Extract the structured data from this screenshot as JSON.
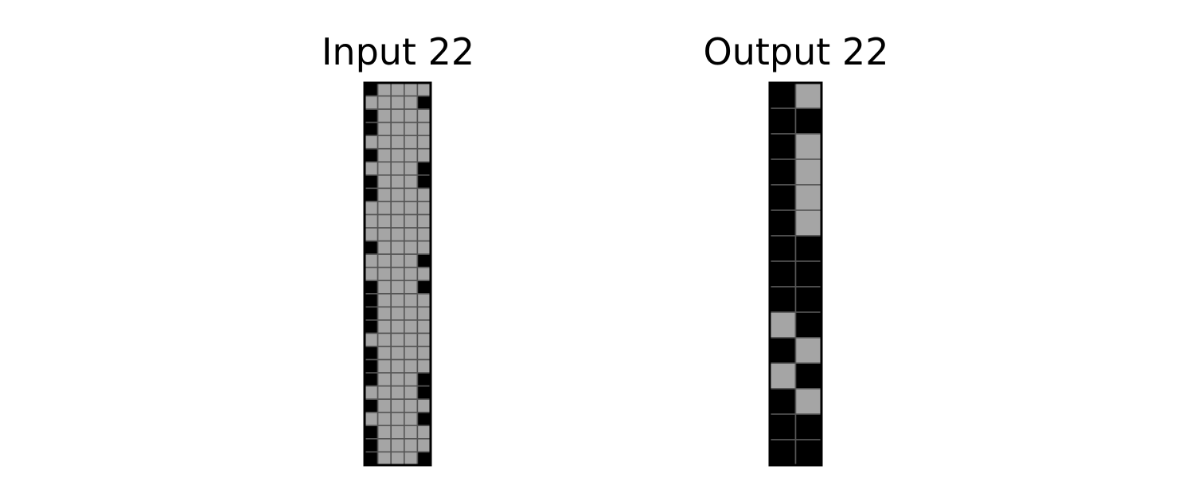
{
  "input": {
    "title": "Input 22",
    "rows": [
      [
        0,
        5,
        5,
        5,
        5
      ],
      [
        5,
        5,
        5,
        5,
        0
      ],
      [
        0,
        5,
        5,
        5,
        5
      ],
      [
        0,
        5,
        5,
        5,
        5
      ],
      [
        5,
        5,
        5,
        5,
        5
      ],
      [
        0,
        5,
        5,
        5,
        5
      ],
      [
        5,
        5,
        5,
        5,
        0
      ],
      [
        0,
        5,
        5,
        5,
        0
      ],
      [
        0,
        5,
        5,
        5,
        5
      ],
      [
        5,
        5,
        5,
        5,
        5
      ],
      [
        5,
        5,
        5,
        5,
        5
      ],
      [
        5,
        5,
        5,
        5,
        5
      ],
      [
        0,
        5,
        5,
        5,
        5
      ],
      [
        5,
        5,
        5,
        5,
        0
      ],
      [
        5,
        5,
        5,
        5,
        5
      ],
      [
        0,
        5,
        5,
        5,
        0
      ],
      [
        0,
        5,
        5,
        5,
        5
      ],
      [
        0,
        5,
        5,
        5,
        5
      ],
      [
        0,
        5,
        5,
        5,
        5
      ],
      [
        5,
        5,
        5,
        5,
        5
      ],
      [
        0,
        5,
        5,
        5,
        5
      ],
      [
        0,
        5,
        5,
        5,
        5
      ],
      [
        0,
        5,
        5,
        5,
        0
      ],
      [
        5,
        5,
        5,
        5,
        0
      ],
      [
        0,
        5,
        5,
        5,
        5
      ],
      [
        5,
        5,
        5,
        5,
        0
      ],
      [
        0,
        5,
        5,
        5,
        5
      ],
      [
        0,
        5,
        5,
        5,
        5
      ],
      [
        0,
        5,
        5,
        5,
        0
      ]
    ]
  },
  "output": {
    "title": "Output 22",
    "rows": [
      [
        0,
        5
      ],
      [
        0,
        0
      ],
      [
        0,
        5
      ],
      [
        0,
        5
      ],
      [
        0,
        5
      ],
      [
        0,
        5
      ],
      [
        0,
        0
      ],
      [
        0,
        0
      ],
      [
        0,
        0
      ],
      [
        5,
        0
      ],
      [
        0,
        5
      ],
      [
        5,
        0
      ],
      [
        0,
        5
      ],
      [
        0,
        0
      ],
      [
        0,
        0
      ]
    ]
  },
  "palette": {
    "0": "#000000",
    "5": "#a5a5a5"
  },
  "gridline_color": "#555555",
  "border_color": "#000000"
}
